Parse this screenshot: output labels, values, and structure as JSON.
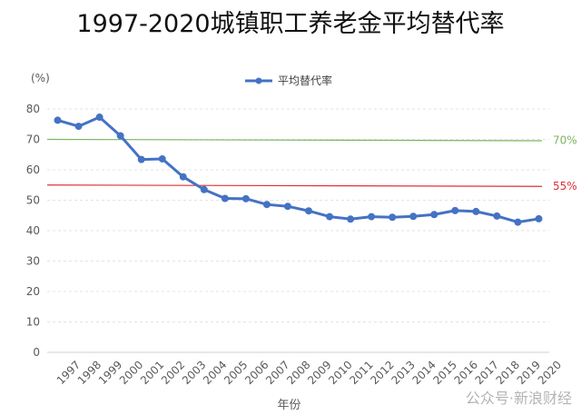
{
  "title": "1997-2020城镇职工养老金平均替代率",
  "watermark": "公众号·新浪财经",
  "chart_data": {
    "type": "line",
    "title": "1997-2020城镇职工养老金平均替代率",
    "ylabel": "(%)",
    "xlabel": "年份",
    "ylim": [
      0,
      80
    ],
    "yticks": [
      0,
      10,
      20,
      30,
      40,
      50,
      60,
      70,
      80
    ],
    "grid": true,
    "legend_position": "top-center",
    "categories": [
      "1997",
      "1998",
      "1999",
      "2000",
      "2001",
      "2002",
      "2003",
      "2004",
      "2005",
      "2006",
      "2007",
      "2008",
      "2009",
      "2010",
      "2011",
      "2012",
      "2013",
      "2014",
      "2015",
      "2016",
      "2017",
      "2018",
      "2019",
      "2020"
    ],
    "series": [
      {
        "name": "平均替代率",
        "color": "#4472C4",
        "values": [
          76.3,
          74.3,
          77.3,
          71.2,
          63.4,
          63.6,
          57.7,
          53.5,
          50.6,
          50.5,
          48.6,
          48.0,
          46.5,
          44.6,
          43.8,
          44.6,
          44.4,
          44.7,
          45.3,
          46.6,
          46.3,
          44.8,
          42.8,
          43.9
        ]
      }
    ],
    "reference_lines": [
      {
        "label": "70%",
        "value": 70,
        "color": "#7CB661"
      },
      {
        "label": "55%",
        "value": 55,
        "color": "#E0303A"
      }
    ]
  }
}
